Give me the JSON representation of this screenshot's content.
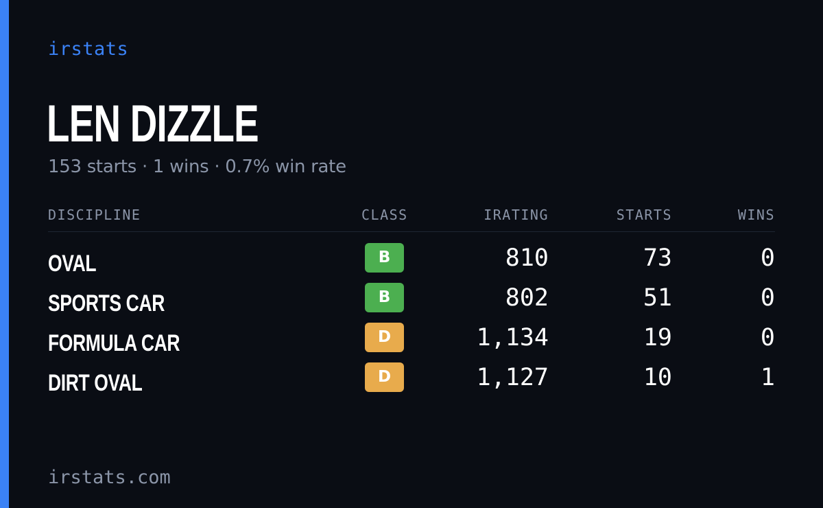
{
  "brand": "irstats",
  "driver": {
    "name": "LEN DIZZLE",
    "summary": "153 starts · 1 wins · 0.7% win rate"
  },
  "table": {
    "headers": {
      "discipline": "DISCIPLINE",
      "class": "CLASS",
      "irating": "IRATING",
      "starts": "STARTS",
      "wins": "WINS"
    },
    "rows": [
      {
        "discipline": "OVAL",
        "class": "B",
        "class_color": "#4caf50",
        "irating": "810",
        "starts": "73",
        "wins": "0"
      },
      {
        "discipline": "SPORTS CAR",
        "class": "B",
        "class_color": "#4caf50",
        "irating": "802",
        "starts": "51",
        "wins": "0"
      },
      {
        "discipline": "FORMULA CAR",
        "class": "D",
        "class_color": "#e8ab4c",
        "irating": "1,134",
        "starts": "19",
        "wins": "0"
      },
      {
        "discipline": "DIRT OVAL",
        "class": "D",
        "class_color": "#e8ab4c",
        "irating": "1,127",
        "starts": "10",
        "wins": "1"
      }
    ]
  },
  "footer": "irstats.com",
  "colors": {
    "background": "#0a0d14",
    "accent": "#3b82f6",
    "muted_text": "#8b95a8",
    "class_b": "#4caf50",
    "class_d": "#e8ab4c"
  }
}
